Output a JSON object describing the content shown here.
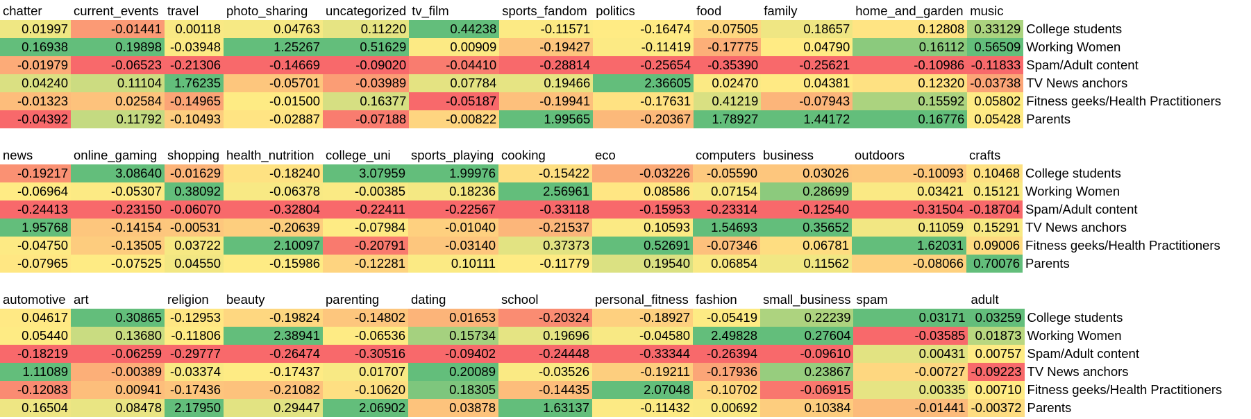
{
  "row_labels": [
    "College students",
    "Working Women",
    "Spam/Adult content",
    "TV News anchors",
    "Fitness geeks/Health Practitioners",
    "Parents"
  ],
  "color_scale": {
    "low": "#F8696B",
    "mid": "#FFEB84",
    "high": "#63BE7B"
  },
  "blocks": [
    {
      "headers": [
        "chatter",
        "current_events",
        "travel",
        "photo_sharing",
        "uncategorized",
        "tv_film",
        "sports_fandom",
        "politics",
        "food",
        "family",
        "home_and_garden",
        "music"
      ],
      "rows": [
        [
          "0.01997",
          "-0.01441",
          "0.00118",
          "0.04763",
          "0.11220",
          "0.44238",
          "-0.11571",
          "-0.16474",
          "-0.07505",
          "0.18657",
          "0.12808",
          "0.33129"
        ],
        [
          "0.16938",
          "0.19898",
          "-0.03948",
          "1.25267",
          "0.51629",
          "0.00909",
          "-0.19427",
          "-0.11419",
          "-0.17775",
          "0.04790",
          "0.16112",
          "0.56509"
        ],
        [
          "-0.01979",
          "-0.06523",
          "-0.21306",
          "-0.14669",
          "-0.09020",
          "-0.04410",
          "-0.28814",
          "-0.25654",
          "-0.35390",
          "-0.25621",
          "-0.10986",
          "-0.11833"
        ],
        [
          "0.04240",
          "0.11104",
          "1.76235",
          "-0.05701",
          "-0.03989",
          "0.07784",
          "0.19466",
          "2.36605",
          "0.02470",
          "0.04381",
          "0.12320",
          "-0.03738"
        ],
        [
          "-0.01323",
          "0.02584",
          "-0.14965",
          "-0.01500",
          "0.16377",
          "-0.05187",
          "-0.19941",
          "-0.17631",
          "0.41219",
          "-0.07943",
          "0.15592",
          "0.05802"
        ],
        [
          "-0.04392",
          "0.11792",
          "-0.10493",
          "-0.02887",
          "-0.07188",
          "-0.00822",
          "1.99565",
          "-0.20367",
          "1.78927",
          "1.44172",
          "0.16776",
          "0.05428"
        ]
      ]
    },
    {
      "headers": [
        "news",
        "online_gaming",
        "shopping",
        "health_nutrition",
        "college_uni",
        "sports_playing",
        "cooking",
        "eco",
        "computers",
        "business",
        "outdoors",
        "crafts"
      ],
      "rows": [
        [
          "-0.19217",
          "3.08640",
          "-0.01629",
          "-0.18240",
          "3.07959",
          "1.99976",
          "-0.15422",
          "-0.03226",
          "-0.05590",
          "0.03026",
          "-0.10093",
          "0.10468"
        ],
        [
          "-0.06964",
          "-0.05307",
          "0.38092",
          "-0.06378",
          "-0.00385",
          "0.18236",
          "2.56961",
          "0.08586",
          "0.07154",
          "0.28699",
          "0.03421",
          "0.15121"
        ],
        [
          "-0.24413",
          "-0.23150",
          "-0.06070",
          "-0.32804",
          "-0.22411",
          "-0.22567",
          "-0.33118",
          "-0.15953",
          "-0.23314",
          "-0.12540",
          "-0.31504",
          "-0.18704"
        ],
        [
          "1.95768",
          "-0.14154",
          "-0.00531",
          "-0.20639",
          "-0.07984",
          "-0.01040",
          "-0.21537",
          "0.10593",
          "1.54693",
          "0.35652",
          "0.11059",
          "0.15291"
        ],
        [
          "-0.04750",
          "-0.13505",
          "0.03722",
          "2.10097",
          "-0.20791",
          "-0.03140",
          "0.37373",
          "0.52691",
          "-0.07346",
          "0.06781",
          "1.62031",
          "0.09006"
        ],
        [
          "-0.07965",
          "-0.07525",
          "0.04550",
          "-0.15986",
          "-0.12281",
          "0.10111",
          "-0.11779",
          "0.19540",
          "0.06854",
          "0.11562",
          "-0.08066",
          "0.70076"
        ]
      ]
    },
    {
      "headers": [
        "automotive",
        "art",
        "religion",
        "beauty",
        "parenting",
        "dating",
        "school",
        "personal_fitness",
        "fashion",
        "small_business",
        "spam",
        "adult"
      ],
      "rows": [
        [
          "0.04617",
          "0.30865",
          "-0.12953",
          "-0.19824",
          "-0.14802",
          "0.01653",
          "-0.20324",
          "-0.18927",
          "-0.05419",
          "0.22239",
          "0.03171",
          "0.03259"
        ],
        [
          "0.05440",
          "0.13680",
          "-0.11806",
          "2.38941",
          "-0.06536",
          "0.15734",
          "0.19696",
          "-0.04580",
          "2.49828",
          "0.27604",
          "-0.03585",
          "0.01873"
        ],
        [
          "-0.18219",
          "-0.06259",
          "-0.29777",
          "-0.26474",
          "-0.30516",
          "-0.09402",
          "-0.24448",
          "-0.33344",
          "-0.26394",
          "-0.09610",
          "0.00431",
          "0.00757"
        ],
        [
          "1.11089",
          "-0.00389",
          "-0.03374",
          "-0.17437",
          "0.01707",
          "0.20089",
          "-0.03526",
          "-0.19211",
          "-0.17936",
          "0.23867",
          "-0.00727",
          "-0.09223"
        ],
        [
          "-0.12083",
          "0.00941",
          "-0.17436",
          "-0.21082",
          "-0.10620",
          "0.18305",
          "-0.14435",
          "2.07048",
          "-0.10702",
          "-0.06915",
          "0.00335",
          "0.00710"
        ],
        [
          "0.16504",
          "0.08478",
          "2.17950",
          "0.29447",
          "2.06902",
          "0.03878",
          "1.63137",
          "-0.11432",
          "0.00692",
          "0.10384",
          "-0.01441",
          "-0.00372"
        ]
      ]
    }
  ]
}
